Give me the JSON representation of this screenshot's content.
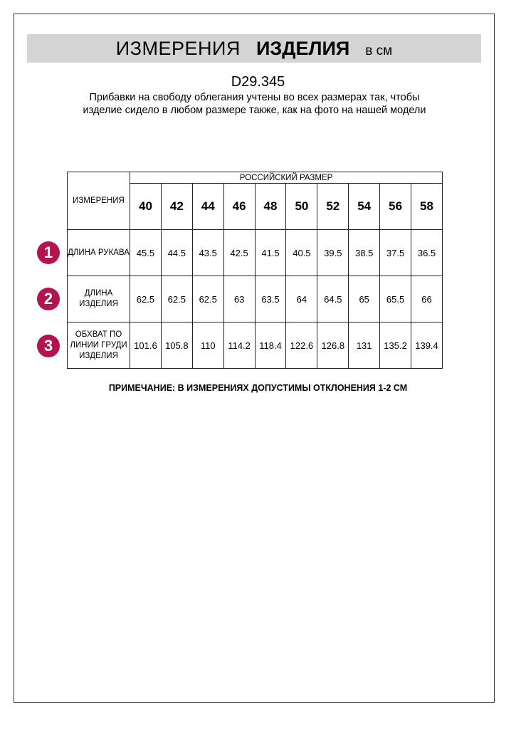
{
  "header": {
    "title_regular": "ИЗМЕРЕНИЯ",
    "title_bold": "ИЗДЕЛИЯ",
    "unit": "в см"
  },
  "product_code": "D29.345",
  "description": "Прибавки на свободу облегания учтены во всех размерах так, чтобы изделие сидело в любом размере также, как на фото на нашей модели",
  "table": {
    "measure_header": "ИЗМЕРЕНИЯ",
    "size_header": "РОССИЙСКИЙ РАЗМЕР",
    "sizes": [
      "40",
      "42",
      "44",
      "46",
      "48",
      "50",
      "52",
      "54",
      "56",
      "58"
    ],
    "rows": [
      {
        "badge": "1",
        "label": "ДЛИНА РУКАВА",
        "values": [
          "45.5",
          "44.5",
          "43.5",
          "42.5",
          "41.5",
          "40.5",
          "39.5",
          "38.5",
          "37.5",
          "36.5"
        ]
      },
      {
        "badge": "2",
        "label": "ДЛИНА ИЗДЕЛИЯ",
        "values": [
          "62.5",
          "62.5",
          "62.5",
          "63",
          "63.5",
          "64",
          "64.5",
          "65",
          "65.5",
          "66"
        ]
      },
      {
        "badge": "3",
        "label": "ОБХВАТ ПО ЛИНИИ ГРУДИ ИЗДЕЛИЯ",
        "values": [
          "101.6",
          "105.8",
          "110",
          "114.2",
          "118.4",
          "122.6",
          "126.8",
          "131",
          "135.2",
          "139.4"
        ]
      }
    ]
  },
  "note": "ПРИМЕЧАНИЕ: В ИЗМЕРЕНИЯХ ДОПУСТИМЫ ОТКЛОНЕНИЯ 1-2 СМ",
  "colors": {
    "banner": "#d4d4d4",
    "badge": "#b3134f"
  }
}
